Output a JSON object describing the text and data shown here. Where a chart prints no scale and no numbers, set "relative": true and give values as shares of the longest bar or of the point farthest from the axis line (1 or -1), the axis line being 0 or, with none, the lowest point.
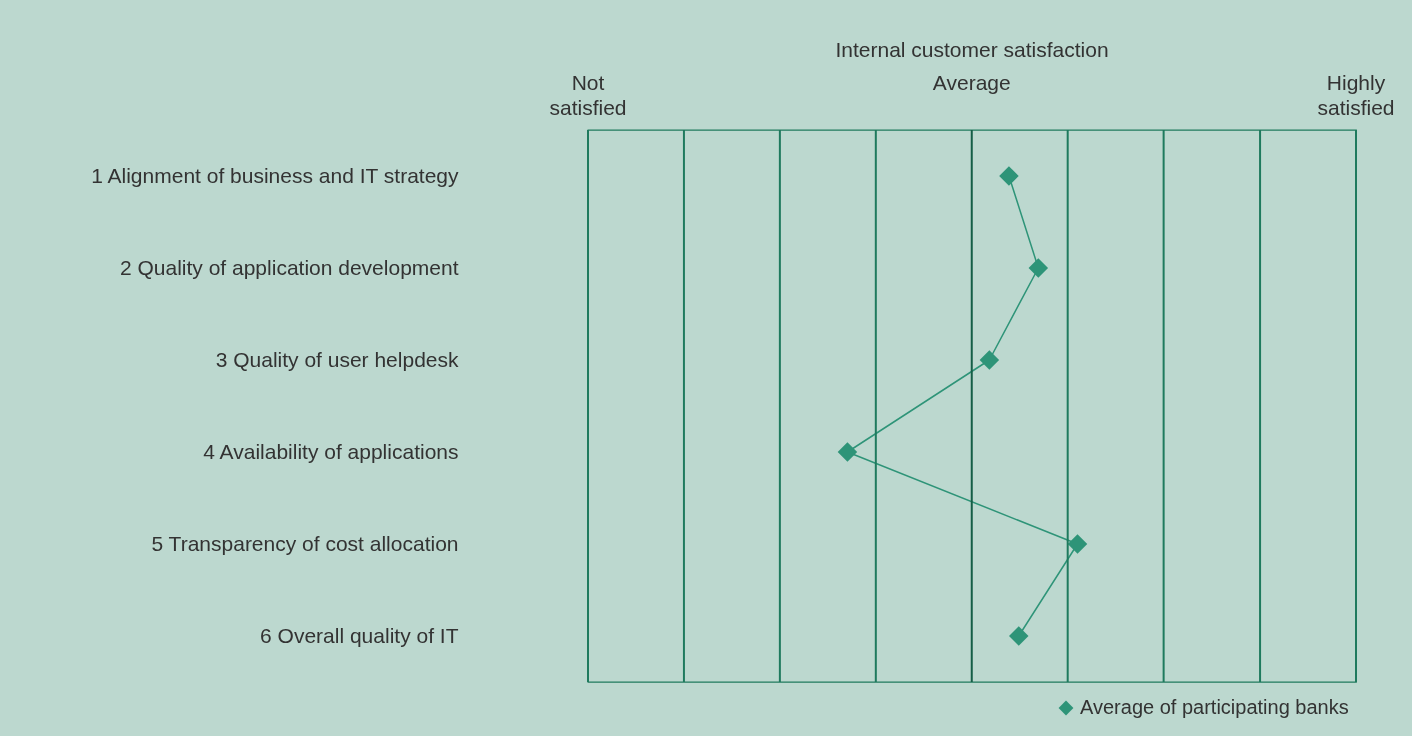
{
  "chart_data": {
    "type": "line",
    "orientation": "horizontal",
    "relative": true,
    "annotations": [
      "Internal customer satisfaction"
    ],
    "categories": [
      "1 Alignment of business and IT strategy",
      "2 Quality of application development",
      "3 Quality of user helpdesk",
      "4 Availability of applications",
      "5 Transparency of cost allocation",
      "6 Overall quality of IT"
    ],
    "series": [
      {
        "name": "Average of participating banks",
        "color": "#2e9478",
        "values": [
          0.86,
          0.92,
          0.82,
          0.53,
          1,
          0.88
        ]
      }
    ],
    "ref_lines": [
      {
        "axis": "x",
        "value": 0,
        "label": "Not satisfied",
        "color": "#1f7a5e"
      },
      {
        "axis": "x",
        "value": 0.196,
        "color": "#1f7a5e"
      },
      {
        "axis": "x",
        "value": 0.392,
        "color": "#1f7a5e"
      },
      {
        "axis": "x",
        "value": 0.588,
        "color": "#1f7a5e"
      },
      {
        "axis": "x",
        "value": 0.784,
        "label": "Average",
        "color": "#155e47"
      },
      {
        "axis": "x",
        "value": 0.98,
        "color": "#1f7a5e"
      },
      {
        "axis": "x",
        "value": 1.176,
        "color": "#1f7a5e"
      },
      {
        "axis": "x",
        "value": 1.373,
        "color": "#1f7a5e"
      },
      {
        "axis": "x",
        "value": 1.569,
        "label": "Highly satisfied",
        "color": "#1f7a5e"
      }
    ],
    "legend": "bottom right",
    "marker": "diamond"
  }
}
